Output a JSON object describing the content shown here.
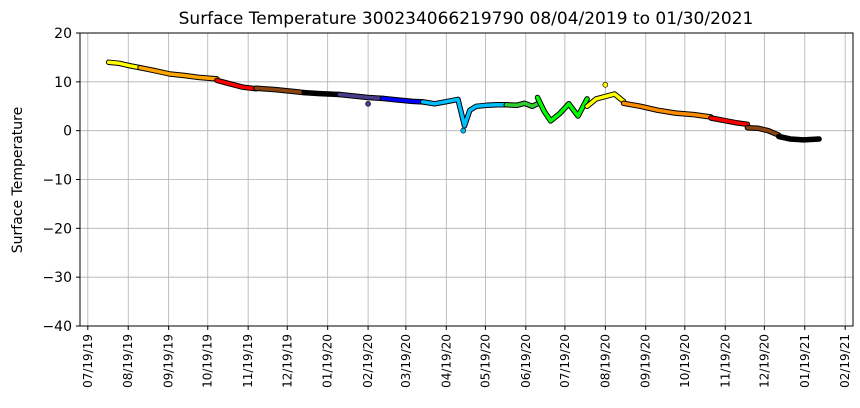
{
  "chart_data": {
    "type": "scatter",
    "title": "Surface Temperature 300234066219790  08/04/2019 to 01/30/2021",
    "xlabel": "",
    "ylabel": "Surface Temperature",
    "ylim": [
      -40,
      20
    ],
    "yticks": [
      20,
      10,
      0,
      -10,
      -20,
      -30,
      -40
    ],
    "ytick_labels": [
      "20",
      "10",
      "0",
      "−10",
      "−20",
      "−30",
      "−40"
    ],
    "xlim": [
      "2019-07-13",
      "2021-02-25"
    ],
    "xtick_dates": [
      "2019-07-19",
      "2019-08-19",
      "2019-09-19",
      "2019-10-19",
      "2019-11-19",
      "2019-12-19",
      "2020-01-19",
      "2020-02-19",
      "2020-03-19",
      "2020-04-19",
      "2020-05-19",
      "2020-06-19",
      "2020-07-19",
      "2020-08-19",
      "2020-09-19",
      "2020-10-19",
      "2020-11-19",
      "2020-12-19",
      "2021-01-19",
      "2021-02-19"
    ],
    "xtick_labels": [
      "07/19/19",
      "08/19/19",
      "09/19/19",
      "10/19/19",
      "11/19/19",
      "12/19/19",
      "01/19/20",
      "02/19/20",
      "03/19/20",
      "04/19/20",
      "05/19/20",
      "06/19/20",
      "07/19/20",
      "08/19/20",
      "09/19/20",
      "10/19/20",
      "11/19/20",
      "12/19/20",
      "01/19/21",
      "02/19/21"
    ],
    "grid": true,
    "series": [
      {
        "color": "#ffff00",
        "x": [
          "2019-08-04",
          "2019-08-12",
          "2019-08-20",
          "2019-08-28"
        ],
        "y": [
          14.0,
          13.8,
          13.3,
          12.9
        ]
      },
      {
        "color": "#ffa500",
        "x": [
          "2019-08-28",
          "2019-09-08",
          "2019-09-20",
          "2019-10-01",
          "2019-10-12",
          "2019-10-26"
        ],
        "y": [
          12.9,
          12.3,
          11.6,
          11.3,
          10.9,
          10.6
        ]
      },
      {
        "color": "#ff0000",
        "x": [
          "2019-10-26",
          "2019-11-05",
          "2019-11-15",
          "2019-11-25"
        ],
        "y": [
          10.3,
          9.6,
          8.9,
          8.6
        ]
      },
      {
        "color": "#8b4513",
        "x": [
          "2019-11-25",
          "2019-12-10",
          "2019-12-25",
          "2020-01-01"
        ],
        "y": [
          8.7,
          8.4,
          8.0,
          7.8
        ]
      },
      {
        "color": "#000000",
        "x": [
          "2020-01-01",
          "2020-01-13",
          "2020-01-28"
        ],
        "y": [
          7.8,
          7.6,
          7.4
        ]
      },
      {
        "color": "#483d8b",
        "x": [
          "2020-01-28",
          "2020-02-08",
          "2020-02-19",
          "2020-03-01"
        ],
        "y": [
          7.4,
          7.1,
          6.8,
          6.6
        ]
      },
      {
        "color": "#0000ff",
        "x": [
          "2020-03-01",
          "2020-03-12",
          "2020-03-24",
          "2020-04-01"
        ],
        "y": [
          6.6,
          6.3,
          6.0,
          5.9
        ]
      },
      {
        "color": "#00bfff",
        "x": [
          "2020-04-01",
          "2020-04-10",
          "2020-04-20",
          "2020-04-28",
          "2020-05-03",
          "2020-05-07",
          "2020-05-12",
          "2020-05-20",
          "2020-05-28",
          "2020-06-04"
        ],
        "y": [
          5.9,
          5.5,
          6.0,
          6.4,
          1.0,
          4.2,
          5.0,
          5.2,
          5.3,
          5.3
        ]
      },
      {
        "color": "#32cd32",
        "x": [
          "2020-06-04",
          "2020-06-12",
          "2020-06-18",
          "2020-06-24",
          "2020-06-28"
        ],
        "y": [
          5.3,
          5.2,
          5.6,
          5.0,
          5.5
        ]
      },
      {
        "color": "#00ff00",
        "x": [
          "2020-06-28",
          "2020-07-03",
          "2020-07-08",
          "2020-07-15",
          "2020-07-22",
          "2020-07-29",
          "2020-08-05"
        ],
        "y": [
          6.8,
          4.0,
          2.0,
          3.5,
          5.5,
          3.0,
          6.5
        ]
      },
      {
        "color": "#ffff00",
        "x": [
          "2020-08-05",
          "2020-08-12",
          "2020-08-19",
          "2020-08-26",
          "2020-09-02"
        ],
        "y": [
          5.0,
          6.5,
          7.0,
          7.5,
          6.0
        ]
      },
      {
        "color": "#ff8c00",
        "x": [
          "2020-09-02",
          "2020-09-15",
          "2020-09-28",
          "2020-10-12",
          "2020-10-26",
          "2020-11-08"
        ],
        "y": [
          5.6,
          5.0,
          4.2,
          3.6,
          3.3,
          2.8
        ]
      },
      {
        "color": "#ff0000",
        "x": [
          "2020-11-08",
          "2020-11-18",
          "2020-11-28",
          "2020-12-06"
        ],
        "y": [
          2.6,
          2.1,
          1.6,
          1.3
        ]
      },
      {
        "color": "#8b4513",
        "x": [
          "2020-12-06",
          "2020-12-14",
          "2020-12-22",
          "2020-12-30"
        ],
        "y": [
          0.6,
          0.5,
          0.0,
          -0.9
        ]
      },
      {
        "color": "#000000",
        "x": [
          "2020-12-30",
          "2021-01-08",
          "2021-01-18",
          "2021-01-30"
        ],
        "y": [
          -1.2,
          -1.7,
          -1.9,
          -1.7
        ]
      }
    ],
    "outliers": [
      {
        "color": "#483d8b",
        "x": "2020-02-19",
        "y": 5.5
      },
      {
        "color": "#ffff00",
        "x": "2020-08-19",
        "y": 9.4
      },
      {
        "color": "#00bfff",
        "x": "2020-05-02",
        "y": 0.0
      }
    ]
  }
}
